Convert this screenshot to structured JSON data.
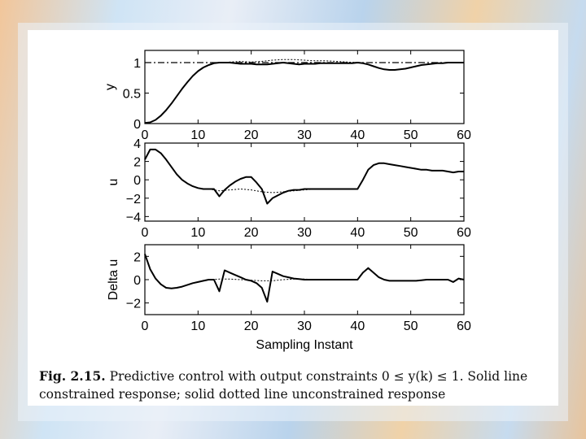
{
  "caption": {
    "label": "Fig. 2.15.",
    "text_line1": "Predictive control with output constraints 0 ≤ y(k) ≤ 1. Solid line",
    "text_line2": "constrained response; solid dotted line unconstrained response"
  },
  "chart_data": [
    {
      "type": "line",
      "ylabel": "y",
      "xlabel": "",
      "xlim": [
        0,
        60
      ],
      "ylim": [
        0,
        1.2
      ],
      "xticks": [
        0,
        10,
        20,
        30,
        40,
        50,
        60
      ],
      "yticks": [
        0,
        0.5,
        1
      ],
      "ytick_labels": [
        "0",
        "0.5",
        "1"
      ],
      "series": [
        {
          "style": "solid",
          "x": [
            0,
            1,
            2,
            3,
            4,
            5,
            6,
            7,
            8,
            9,
            10,
            11,
            12,
            13,
            14,
            15,
            16,
            17,
            18,
            19,
            20,
            21,
            22,
            23,
            24,
            25,
            26,
            27,
            28,
            29,
            30,
            31,
            32,
            33,
            34,
            35,
            36,
            37,
            38,
            39,
            40,
            41,
            42,
            43,
            44,
            45,
            46,
            47,
            48,
            49,
            50,
            51,
            52,
            53,
            54,
            55,
            56,
            57,
            58,
            59,
            60
          ],
          "y": [
            0.01,
            0.02,
            0.06,
            0.13,
            0.22,
            0.33,
            0.45,
            0.57,
            0.68,
            0.78,
            0.86,
            0.92,
            0.96,
            0.99,
            1.0,
            1.0,
            1.0,
            0.99,
            0.98,
            0.98,
            0.98,
            0.97,
            0.97,
            0.97,
            0.98,
            0.99,
            1.0,
            0.99,
            0.98,
            0.97,
            0.98,
            0.98,
            0.98,
            0.99,
            0.99,
            0.99,
            0.99,
            0.99,
            0.99,
            0.99,
            1.0,
            0.99,
            0.97,
            0.94,
            0.91,
            0.89,
            0.88,
            0.88,
            0.89,
            0.9,
            0.92,
            0.94,
            0.96,
            0.97,
            0.98,
            0.99,
            0.99,
            1.0,
            1.0,
            1.0,
            1.0
          ]
        },
        {
          "style": "dotted",
          "x": [
            14,
            16,
            18,
            20,
            22,
            24,
            26,
            28,
            30,
            32,
            34,
            36,
            38,
            40
          ],
          "y": [
            1.0,
            1.01,
            1.02,
            1.01,
            1.02,
            1.04,
            1.05,
            1.05,
            1.04,
            1.03,
            1.03,
            1.02,
            1.01,
            1.0
          ]
        },
        {
          "style": "dashdot",
          "x": [
            0,
            60
          ],
          "y": [
            1,
            1
          ]
        }
      ]
    },
    {
      "type": "line",
      "ylabel": "u",
      "xlabel": "",
      "xlim": [
        0,
        60
      ],
      "ylim": [
        -4.5,
        4
      ],
      "xticks": [
        0,
        10,
        20,
        30,
        40,
        50,
        60
      ],
      "yticks": [
        4,
        2,
        0,
        -2,
        -4
      ],
      "ytick_labels": [
        "4",
        "2",
        "0",
        "−2",
        "−4"
      ],
      "series": [
        {
          "style": "solid",
          "x": [
            0,
            1,
            2,
            3,
            4,
            5,
            6,
            7,
            8,
            9,
            10,
            11,
            12,
            13,
            14,
            15,
            16,
            17,
            18,
            19,
            20,
            21,
            22,
            23,
            24,
            25,
            26,
            27,
            28,
            29,
            30,
            31,
            32,
            33,
            34,
            35,
            36,
            37,
            38,
            39,
            40,
            41,
            42,
            43,
            44,
            45,
            46,
            47,
            48,
            49,
            50,
            51,
            52,
            53,
            54,
            55,
            56,
            57,
            58,
            59,
            60
          ],
          "y": [
            2.2,
            3.3,
            3.3,
            2.9,
            2.2,
            1.4,
            0.6,
            0.0,
            -0.4,
            -0.7,
            -0.9,
            -1.0,
            -1.0,
            -1.0,
            -1.8,
            -1.1,
            -0.6,
            -0.2,
            0.1,
            0.3,
            0.3,
            -0.3,
            -1.0,
            -2.6,
            -2.0,
            -1.7,
            -1.4,
            -1.2,
            -1.1,
            -1.1,
            -1.0,
            -1.0,
            -1.0,
            -1.0,
            -1.0,
            -1.0,
            -1.0,
            -1.0,
            -1.0,
            -1.0,
            -1.0,
            0.0,
            1.1,
            1.6,
            1.8,
            1.8,
            1.7,
            1.6,
            1.5,
            1.4,
            1.3,
            1.2,
            1.1,
            1.1,
            1.0,
            1.0,
            1.0,
            0.9,
            0.8,
            0.9,
            0.9
          ]
        },
        {
          "style": "dotted",
          "x": [
            12,
            14,
            16,
            18,
            20,
            22,
            24,
            26,
            28,
            30,
            32,
            34,
            36,
            38,
            40
          ],
          "y": [
            -1.0,
            -1.2,
            -1.1,
            -1.0,
            -1.1,
            -1.3,
            -1.4,
            -1.3,
            -1.2,
            -1.1,
            -1.0,
            -1.0,
            -1.0,
            -1.0,
            -1.0
          ]
        }
      ]
    },
    {
      "type": "line",
      "ylabel": "Delta u",
      "xlabel": "Sampling Instant",
      "xlim": [
        0,
        60
      ],
      "ylim": [
        -3,
        3
      ],
      "xticks": [
        0,
        10,
        20,
        30,
        40,
        50,
        60
      ],
      "yticks": [
        2,
        0,
        -2
      ],
      "ytick_labels": [
        "2",
        "0",
        "−2"
      ],
      "series": [
        {
          "style": "solid",
          "x": [
            0,
            1,
            2,
            3,
            4,
            5,
            6,
            7,
            8,
            9,
            10,
            11,
            12,
            13,
            14,
            15,
            16,
            17,
            18,
            19,
            20,
            21,
            22,
            23,
            24,
            25,
            26,
            27,
            28,
            29,
            30,
            31,
            32,
            33,
            34,
            35,
            36,
            37,
            38,
            39,
            40,
            41,
            42,
            43,
            44,
            45,
            46,
            47,
            48,
            49,
            50,
            51,
            52,
            53,
            54,
            55,
            56,
            57,
            58,
            59,
            60
          ],
          "y": [
            2.2,
            0.9,
            0.1,
            -0.4,
            -0.7,
            -0.75,
            -0.7,
            -0.6,
            -0.45,
            -0.3,
            -0.2,
            -0.1,
            0.0,
            0.0,
            -1.0,
            0.8,
            0.6,
            0.4,
            0.2,
            0.0,
            -0.1,
            -0.3,
            -0.7,
            -1.9,
            0.7,
            0.5,
            0.3,
            0.2,
            0.1,
            0.05,
            0.0,
            0.0,
            0.0,
            0.0,
            0.0,
            0.0,
            0.0,
            0.0,
            0.0,
            0.0,
            0.0,
            0.6,
            1.0,
            0.6,
            0.2,
            0.0,
            -0.1,
            -0.1,
            -0.1,
            -0.1,
            -0.1,
            -0.1,
            -0.05,
            0.0,
            0.0,
            0.0,
            0.0,
            0.0,
            -0.2,
            0.1,
            0.0
          ]
        },
        {
          "style": "dotted",
          "x": [
            12,
            14,
            16,
            18,
            20,
            22,
            24,
            26,
            28,
            30,
            32,
            34,
            36,
            38,
            40
          ],
          "y": [
            0.0,
            0.05,
            0.05,
            0.0,
            -0.05,
            -0.1,
            -0.1,
            0.0,
            0.05,
            0.05,
            0.0,
            0.0,
            0.0,
            0.0,
            0.0
          ]
        }
      ]
    }
  ]
}
